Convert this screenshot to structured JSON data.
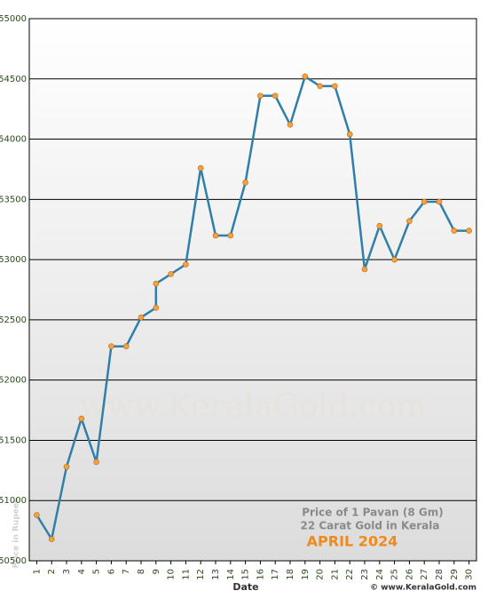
{
  "chart_data": {
    "type": "line",
    "title": "APRIL 2024",
    "annotations": [
      "Price of 1 Pavan (8 Gm)",
      "22 Carat Gold in Kerala"
    ],
    "watermark": "www.KeralaGold.com",
    "copyright": "© www.KeralaGold.com",
    "x_label": "Date",
    "y_label": "Price in Rupees",
    "x": [
      1,
      2,
      3,
      4,
      5,
      6,
      7,
      8,
      9,
      9,
      10,
      11,
      12,
      13,
      14,
      15,
      16,
      17,
      18,
      19,
      20,
      21,
      22,
      23,
      24,
      25,
      26,
      27,
      28,
      29,
      30
    ],
    "values": [
      50880,
      50680,
      51280,
      51680,
      51320,
      52280,
      52280,
      52520,
      52600,
      52800,
      52880,
      52960,
      53760,
      53200,
      53200,
      53640,
      54360,
      54360,
      54120,
      54520,
      54440,
      54440,
      54040,
      52920,
      53280,
      53000,
      53320,
      53480,
      53480,
      53240,
      53240
    ],
    "color": "#2f7fa8",
    "marker_color": "#f5a142",
    "xlim": [
      0.5,
      30.5
    ],
    "xticks": [
      1,
      2,
      3,
      4,
      5,
      6,
      7,
      8,
      9,
      10,
      11,
      12,
      13,
      14,
      15,
      16,
      17,
      18,
      19,
      20,
      21,
      22,
      23,
      24,
      25,
      26,
      27,
      28,
      29,
      30
    ],
    "ylim": [
      50500,
      55000
    ],
    "yticks": [
      50500,
      51000,
      51500,
      52000,
      52500,
      53000,
      53500,
      54000,
      54500,
      55000
    ],
    "grid": true
  }
}
